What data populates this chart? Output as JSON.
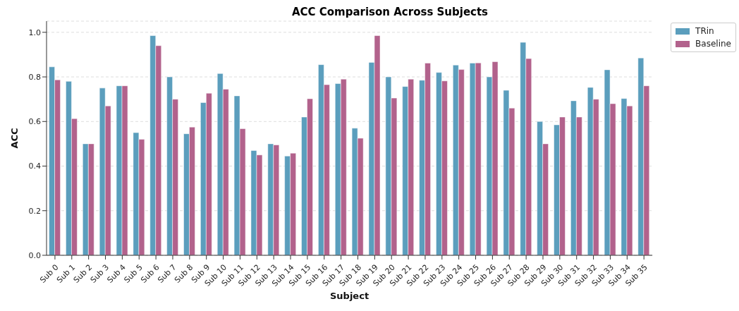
{
  "chart_data": {
    "type": "bar",
    "title": "ACC Comparison Across Subjects",
    "xlabel": "Subject",
    "ylabel": "ACC",
    "categories": [
      "Sub 0",
      "Sub 1",
      "Sub 2",
      "Sub 3",
      "Sub 4",
      "Sub 5",
      "Sub 6",
      "Sub 7",
      "Sub 8",
      "Sub 9",
      "Sub 10",
      "Sub 11",
      "Sub 12",
      "Sub 13",
      "Sub 14",
      "Sub 15",
      "Sub 16",
      "Sub 17",
      "Sub 18",
      "Sub 19",
      "Sub 20",
      "Sub 21",
      "Sub 22",
      "Sub 23",
      "Sub 24",
      "Sub 25",
      "Sub 26",
      "Sub 27",
      "Sub 28",
      "Sub 29",
      "Sub 30",
      "Sub 31",
      "Sub 32",
      "Sub 33",
      "Sub 34",
      "Sub 35"
    ],
    "series": [
      {
        "name": "TRin",
        "color": "#5b9ebd",
        "values": [
          0.845,
          0.78,
          0.5,
          0.75,
          0.76,
          0.55,
          0.985,
          0.8,
          0.545,
          0.685,
          0.815,
          0.715,
          0.47,
          0.5,
          0.445,
          0.62,
          0.855,
          0.77,
          0.57,
          0.865,
          0.8,
          0.757,
          0.785,
          0.82,
          0.853,
          0.862,
          0.8,
          0.74,
          0.955,
          0.6,
          0.585,
          0.693,
          0.753,
          0.832,
          0.703,
          0.885
        ]
      },
      {
        "name": "Baseline",
        "color": "#b2628c",
        "values": [
          0.787,
          0.613,
          0.5,
          0.67,
          0.76,
          0.52,
          0.94,
          0.7,
          0.575,
          0.727,
          0.745,
          0.568,
          0.45,
          0.495,
          0.458,
          0.702,
          0.765,
          0.79,
          0.525,
          0.985,
          0.705,
          0.79,
          0.862,
          0.782,
          0.833,
          0.863,
          0.868,
          0.66,
          0.882,
          0.5,
          0.62,
          0.62,
          0.7,
          0.68,
          0.67,
          0.76
        ]
      }
    ],
    "ylim": [
      0,
      1.05
    ],
    "yticks": [
      {
        "value": 0,
        "label": "0.0"
      },
      0.2,
      0.4,
      0.6,
      0.8,
      {
        "value": 1,
        "label": "1.0"
      }
    ],
    "grid": "y",
    "legend": "top right"
  }
}
